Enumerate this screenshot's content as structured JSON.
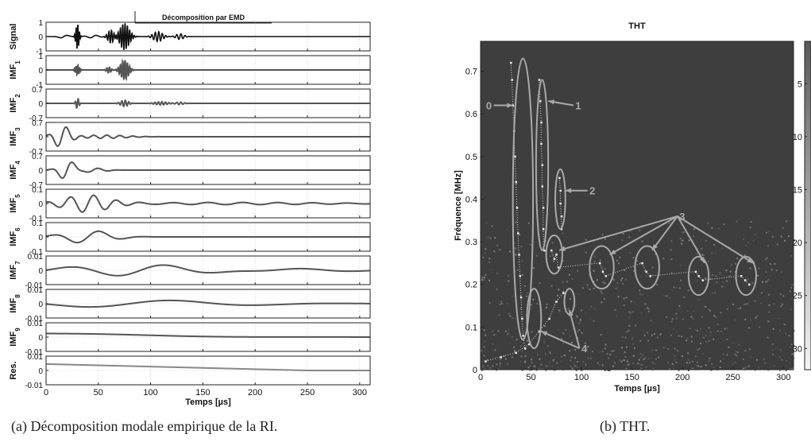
{
  "chart_data": [
    {
      "type": "line",
      "title": "Décomposition par EMD",
      "xlabel": "Temps [µs]",
      "xticks": [
        0,
        50,
        100,
        150,
        200,
        250,
        300
      ],
      "xlim": [
        0,
        310
      ],
      "grid": true,
      "series": [
        {
          "name": "Signal",
          "sub": "",
          "yticks": [
            "1",
            "0",
            "-1"
          ],
          "ylim": [
            -1,
            1
          ],
          "color": "#111111",
          "components": [
            {
              "type": "burst",
              "center": 30,
              "width": 2,
              "freq": 0.62,
              "amp": 0.95
            },
            {
              "type": "burst",
              "center": 75,
              "width": 6,
              "freq": 0.45,
              "amp": 0.95
            },
            {
              "type": "burst",
              "center": 62,
              "width": 4,
              "freq": 0.4,
              "amp": 0.45
            },
            {
              "type": "burst",
              "center": 107,
              "width": 6,
              "freq": 0.3,
              "amp": 0.35
            },
            {
              "type": "burst",
              "center": 128,
              "width": 5,
              "freq": 0.25,
              "amp": 0.2
            },
            {
              "type": "burst",
              "center": 17,
              "width": 5,
              "freq": 0.05,
              "amp": 0.15
            },
            {
              "type": "burst",
              "center": 45,
              "width": 8,
              "freq": 0.08,
              "amp": 0.1
            }
          ]
        },
        {
          "name": "IMF",
          "sub": "1",
          "yticks": [
            "1",
            "0",
            "-1"
          ],
          "ylim": [
            -1,
            1
          ],
          "color": "#555555",
          "components": [
            {
              "type": "burst",
              "center": 30,
              "width": 2.5,
              "freq": 0.62,
              "amp": 0.35
            },
            {
              "type": "burst",
              "center": 75,
              "width": 5,
              "freq": 0.45,
              "amp": 0.7
            },
            {
              "type": "burst",
              "center": 60,
              "width": 3,
              "freq": 0.4,
              "amp": 0.2
            }
          ]
        },
        {
          "name": "IMF",
          "sub": "2",
          "yticks": [
            "0.7",
            "0",
            "-0.7"
          ],
          "ylim": [
            -0.7,
            0.7
          ],
          "color": "#555555",
          "components": [
            {
              "type": "burst",
              "center": 30,
              "width": 2,
              "freq": 0.35,
              "amp": 0.25
            },
            {
              "type": "burst",
              "center": 75,
              "width": 5,
              "freq": 0.3,
              "amp": 0.15
            },
            {
              "type": "burst",
              "center": 110,
              "width": 8,
              "freq": 0.3,
              "amp": 0.08
            },
            {
              "type": "burst",
              "center": 128,
              "width": 5,
              "freq": 0.25,
              "amp": 0.06
            }
          ]
        },
        {
          "name": "IMF",
          "sub": "3",
          "yticks": [
            "0.7",
            "0",
            "-0.7"
          ],
          "ylim": [
            -0.7,
            0.7
          ],
          "color": "#555555",
          "components": [
            {
              "type": "burst",
              "center": 15,
              "width": 10,
              "freq": 0.055,
              "amp": 0.55
            },
            {
              "type": "burst",
              "center": 55,
              "width": 30,
              "freq": 0.08,
              "amp": 0.08
            }
          ]
        },
        {
          "name": "IMF",
          "sub": "4",
          "yticks": [
            "0.7",
            "0",
            "-0.7"
          ],
          "ylim": [
            -0.7,
            0.7
          ],
          "color": "#555555",
          "components": [
            {
              "type": "burst",
              "center": 20,
              "width": 10,
              "freq": 0.045,
              "amp": 0.5
            },
            {
              "type": "burst",
              "center": 45,
              "width": 15,
              "freq": 0.05,
              "amp": 0.1
            }
          ]
        },
        {
          "name": "IMF",
          "sub": "5",
          "yticks": [
            "0.1",
            "0",
            "-0.1"
          ],
          "ylim": [
            -0.1,
            0.1
          ],
          "color": "#555555",
          "components": [
            {
              "type": "burst",
              "center": 40,
              "width": 30,
              "freq": 0.045,
              "amp": 0.06
            },
            {
              "type": "burst",
              "center": 180,
              "width": 120,
              "freq": 0.03,
              "amp": 0.008
            }
          ]
        },
        {
          "name": "IMF",
          "sub": "6",
          "yticks": [
            "0.1",
            "0",
            "-0.1"
          ],
          "ylim": [
            -0.1,
            0.1
          ],
          "color": "#555555",
          "components": [
            {
              "type": "burst",
              "center": 40,
              "width": 30,
              "freq": 0.022,
              "amp": 0.045
            }
          ]
        },
        {
          "name": "IMF",
          "sub": "7",
          "yticks": [
            "0.01",
            "0",
            "-0.01"
          ],
          "ylim": [
            -0.01,
            0.01
          ],
          "color": "#555555",
          "components": [
            {
              "type": "burst",
              "center": 90,
              "width": 90,
              "freq": 0.011,
              "amp": 0.004
            },
            {
              "type": "burst",
              "center": 220,
              "width": 80,
              "freq": 0.01,
              "amp": 0.0015
            }
          ]
        },
        {
          "name": "IMF",
          "sub": "8",
          "yticks": [
            "0.01",
            "0",
            "-0.01"
          ],
          "ylim": [
            -0.01,
            0.01
          ],
          "color": "#555555",
          "components": [
            {
              "type": "burst",
              "center": 80,
              "width": 130,
              "freq": 0.006,
              "amp": 0.0025
            }
          ]
        },
        {
          "name": "IMF",
          "sub": "9",
          "yticks": [
            "0.01",
            "0",
            "-0.01"
          ],
          "ylim": [
            -0.01,
            0.01
          ],
          "color": "#555555",
          "components": [
            {
              "type": "burst",
              "center": 0,
              "width": 150,
              "freq": 0.0,
              "amp": 0.0025
            },
            {
              "type": "burst",
              "center": 150,
              "width": 80,
              "freq": 0.0,
              "amp": -0.0005
            }
          ]
        },
        {
          "name": "Res.",
          "sub": "",
          "yticks": [
            "0.01",
            "0",
            "-0.01"
          ],
          "ylim": [
            -0.01,
            0.01
          ],
          "color": "#888888",
          "components": [
            {
              "type": "linear",
              "x0": 0,
              "y0": 0.0045,
              "x1": 250,
              "y1": 0.0
            }
          ]
        }
      ]
    },
    {
      "type": "heatmap",
      "title": "THT",
      "xlabel": "Temps [µs]",
      "ylabel": "Fréquence [MHz]",
      "xticks": [
        0,
        50,
        100,
        150,
        200,
        250,
        300
      ],
      "yticks": [
        0,
        0.1,
        0.2,
        0.3,
        0.4,
        0.5,
        0.6,
        0.7
      ],
      "xlim": [
        0,
        310
      ],
      "ylim": [
        0,
        0.77
      ],
      "colorbar_ticks": [
        5,
        10,
        15,
        20,
        25,
        30
      ],
      "colorbar_range": [
        1,
        32
      ],
      "background": "#3e3e3e",
      "traces": [
        {
          "label": "0",
          "points": [
            [
              30,
              0.72
            ],
            [
              31,
              0.68
            ],
            [
              32,
              0.62
            ],
            [
              33,
              0.56
            ],
            [
              34,
              0.5
            ],
            [
              35,
              0.44
            ],
            [
              36,
              0.38
            ],
            [
              37,
              0.32
            ],
            [
              38,
              0.27
            ],
            [
              39,
              0.22
            ],
            [
              40,
              0.17
            ],
            [
              41,
              0.12
            ],
            [
              42,
              0.08
            ],
            [
              44,
              0.05
            ]
          ]
        },
        {
          "label": "1",
          "points": [
            [
              58,
              0.68
            ],
            [
              59,
              0.63
            ],
            [
              60,
              0.58
            ],
            [
              60,
              0.53
            ],
            [
              61,
              0.48
            ],
            [
              61,
              0.43
            ],
            [
              62,
              0.38
            ],
            [
              62,
              0.33
            ],
            [
              63,
              0.28
            ]
          ]
        },
        {
          "label": "2",
          "points": [
            [
              78,
              0.45
            ],
            [
              79,
              0.42
            ],
            [
              79,
              0.39
            ],
            [
              80,
              0.36
            ],
            [
              80,
              0.33
            ]
          ]
        },
        {
          "label": "3",
          "points": [
            [
              70,
              0.28
            ],
            [
              73,
              0.26
            ],
            [
              75,
              0.27
            ],
            [
              77,
              0.24
            ],
            [
              118,
              0.25
            ],
            [
              121,
              0.23
            ],
            [
              124,
              0.22
            ],
            [
              160,
              0.25
            ],
            [
              164,
              0.23
            ],
            [
              168,
              0.22
            ],
            [
              213,
              0.23
            ],
            [
              216,
              0.22
            ],
            [
              220,
              0.21
            ],
            [
              258,
              0.22
            ],
            [
              262,
              0.21
            ],
            [
              266,
              0.2
            ]
          ]
        },
        {
          "label": "4",
          "points": [
            [
              5,
              0.02
            ],
            [
              20,
              0.03
            ],
            [
              35,
              0.04
            ],
            [
              48,
              0.06
            ],
            [
              58,
              0.09
            ],
            [
              68,
              0.12
            ],
            [
              75,
              0.16
            ],
            [
              82,
              0.18
            ]
          ]
        }
      ],
      "ellipses": [
        {
          "label": "0",
          "cx": 42,
          "cy": 0.4,
          "rx": 10,
          "ry": 0.33
        },
        {
          "label": "1",
          "cx": 61,
          "cy": 0.48,
          "rx": 6,
          "ry": 0.2
        },
        {
          "label": "2",
          "cx": 79,
          "cy": 0.4,
          "rx": 5,
          "ry": 0.07
        },
        {
          "label": "3",
          "cx": 73,
          "cy": 0.27,
          "rx": 8,
          "ry": 0.045
        },
        {
          "label": "3",
          "cx": 120,
          "cy": 0.24,
          "rx": 12,
          "ry": 0.05
        },
        {
          "label": "3",
          "cx": 165,
          "cy": 0.24,
          "rx": 12,
          "ry": 0.05
        },
        {
          "label": "3",
          "cx": 216,
          "cy": 0.22,
          "rx": 10,
          "ry": 0.045
        },
        {
          "label": "3",
          "cx": 263,
          "cy": 0.22,
          "rx": 10,
          "ry": 0.045
        },
        {
          "label": "4",
          "cx": 53,
          "cy": 0.12,
          "rx": 7,
          "ry": 0.07
        },
        {
          "label": "4",
          "cx": 88,
          "cy": 0.16,
          "rx": 5,
          "ry": 0.03
        }
      ],
      "annotations": [
        {
          "text": "0",
          "x": 13,
          "y": 0.62,
          "target": [
            32,
            0.62
          ]
        },
        {
          "text": "1",
          "x": 92,
          "y": 0.62,
          "target": [
            67,
            0.63
          ]
        },
        {
          "text": "2",
          "x": 106,
          "y": 0.42,
          "target": [
            84,
            0.42
          ]
        },
        {
          "text": "3",
          "x": 195,
          "y": 0.36,
          "targets": [
            [
              78,
              0.28
            ],
            [
              128,
              0.27
            ],
            [
              170,
              0.28
            ],
            [
              222,
              0.25
            ],
            [
              270,
              0.25
            ]
          ]
        },
        {
          "text": "4",
          "x": 98,
          "y": 0.05,
          "targets": [
            [
              60,
              0.09
            ],
            [
              88,
              0.14
            ]
          ]
        }
      ]
    }
  ],
  "captions": {
    "a": "(a)  Décomposition modale empirique de la RI.",
    "b": "(b)  THT."
  }
}
